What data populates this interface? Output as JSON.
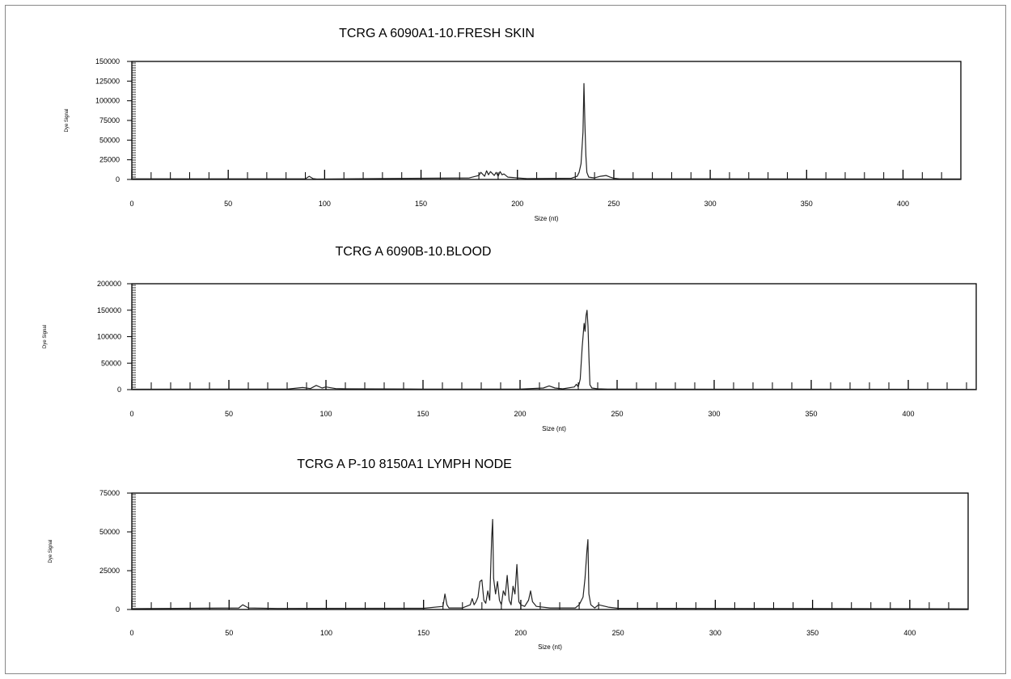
{
  "chart_data": [
    {
      "type": "line",
      "title": "TCRG A 6090A1-10.FRESH SKIN",
      "xlabel": "Size (nt)",
      "ylabel": "Dye Signal",
      "xlim": [
        0,
        430
      ],
      "ylim": [
        0,
        150000
      ],
      "x_ticks": [
        0,
        50,
        100,
        150,
        200,
        250,
        300,
        350,
        400
      ],
      "y_ticks": [
        0,
        25000,
        50000,
        75000,
        100000,
        125000,
        150000
      ],
      "y_tick_labels": [
        "0",
        "25000",
        "50000",
        "75000",
        "100000",
        "125000",
        "150000"
      ],
      "grid": false,
      "series": [
        {
          "x": [
            0,
            90,
            92,
            94,
            96,
            175,
            180,
            181,
            183,
            184,
            185,
            186,
            188,
            189,
            190,
            191,
            192,
            193,
            195,
            200,
            205,
            228,
            231,
            232,
            233,
            234,
            234.5,
            235,
            235.5,
            236,
            237,
            240,
            243,
            246,
            248,
            250,
            253,
            430
          ],
          "y": [
            800,
            800,
            4000,
            1000,
            500,
            2000,
            5000,
            9000,
            4000,
            11000,
            6000,
            10000,
            5000,
            9000,
            4000,
            10000,
            6000,
            7000,
            3000,
            2000,
            1000,
            1500,
            4000,
            9000,
            20000,
            60000,
            122000,
            70000,
            30000,
            9000,
            3000,
            2000,
            4000,
            5000,
            3000,
            1500,
            800,
            600
          ]
        }
      ]
    },
    {
      "type": "line",
      "title": "TCRG A 6090B-10.BLOOD",
      "xlabel": "Size (nt)",
      "ylabel": "Dye Signal",
      "xlim": [
        0,
        435
      ],
      "ylim": [
        0,
        200000
      ],
      "x_ticks": [
        0,
        50,
        100,
        150,
        200,
        250,
        300,
        350,
        400
      ],
      "y_ticks": [
        0,
        50000,
        100000,
        150000,
        200000
      ],
      "y_tick_labels": [
        "0",
        "50000",
        "100000",
        "150000",
        "200000"
      ],
      "grid": false,
      "series": [
        {
          "x": [
            0,
            80,
            88,
            92,
            95,
            98,
            100,
            105,
            110,
            150,
            200,
            212,
            215,
            218,
            222,
            228,
            229,
            230,
            231,
            232,
            233,
            233.5,
            234,
            234.5,
            235,
            235.5,
            236,
            237,
            240,
            245,
            435
          ],
          "y": [
            800,
            1000,
            4000,
            2000,
            8000,
            3000,
            5000,
            2000,
            1500,
            1000,
            1000,
            3000,
            7000,
            3000,
            1500,
            5000,
            10000,
            5000,
            20000,
            80000,
            125000,
            110000,
            140000,
            150000,
            120000,
            60000,
            9000,
            3000,
            1500,
            1000,
            500
          ]
        }
      ]
    },
    {
      "type": "line",
      "title": "TCRG A P-10 8150A1 LYMPH NODE",
      "xlabel": "Size (nt)",
      "ylabel": "Dye Signal",
      "xlim": [
        0,
        430
      ],
      "ylim": [
        0,
        75000
      ],
      "x_ticks": [
        0,
        50,
        100,
        150,
        200,
        250,
        300,
        350,
        400
      ],
      "y_ticks": [
        0,
        25000,
        50000,
        75000
      ],
      "y_tick_labels": [
        "0",
        "25000",
        "50000",
        "75000"
      ],
      "grid": false,
      "series": [
        {
          "x": [
            0,
            55,
            57,
            60,
            75,
            150,
            160,
            161,
            162,
            163,
            170,
            174,
            175,
            176,
            177,
            178,
            179,
            180,
            181,
            182,
            183,
            184,
            185,
            185.5,
            186,
            187,
            188,
            189,
            190,
            191,
            192,
            193,
            194,
            195,
            196,
            197,
            198,
            199,
            200,
            202,
            204,
            205,
            206,
            208,
            215,
            228,
            230,
            232,
            233,
            234,
            234.5,
            235,
            236,
            238,
            240,
            245,
            250,
            430
          ],
          "y": [
            500,
            1000,
            3000,
            1000,
            700,
            800,
            2000,
            10000,
            3000,
            1000,
            1000,
            3000,
            7000,
            3000,
            5000,
            8000,
            18000,
            19000,
            6000,
            4000,
            12000,
            6000,
            46000,
            58000,
            20000,
            10000,
            18000,
            6000,
            3000,
            12000,
            9000,
            22000,
            6000,
            3000,
            15000,
            10000,
            29000,
            5000,
            3000,
            2000,
            6000,
            12000,
            5000,
            2000,
            1000,
            1000,
            3000,
            8000,
            20000,
            38000,
            45000,
            10000,
            3000,
            1000,
            3000,
            1500,
            800,
            400
          ]
        }
      ]
    }
  ]
}
